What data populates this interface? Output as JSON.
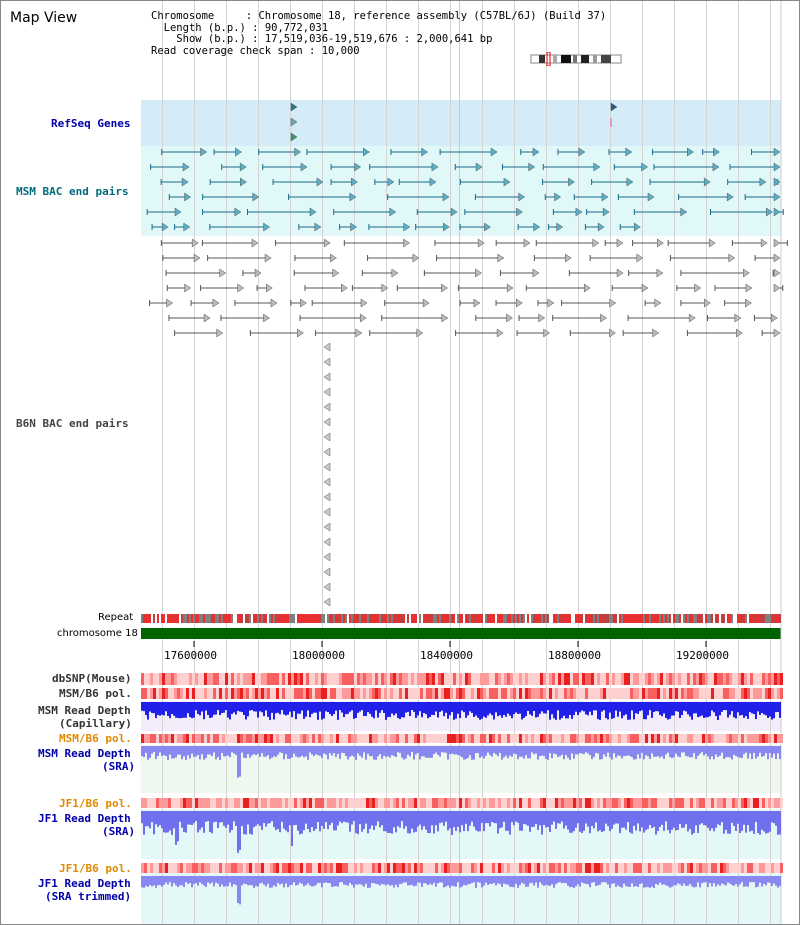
{
  "app_title": "Map View",
  "info": {
    "chromosome_key": "Chromosome",
    "chromosome_val": "Chromosome 18, reference assembly (C57BL/6J) (Build 37)",
    "length_key": "Length (b.p.)",
    "length_val": "90,772,031",
    "show_key": "Show (b.p.)",
    "show_val": "17,519,036-19,519,676 : 2,000,641 bp",
    "coverage_key": "Read coverage check span",
    "coverage_val": "10,000"
  },
  "tracks": {
    "refseq": "RefSeq Genes",
    "msm_bac": "MSM BAC end pairs",
    "b6n_bac": "B6N BAC end pairs",
    "repeat": "Repeat",
    "chromosome": "chromosome 18",
    "dbsnp": "dbSNP(Mouse)",
    "msm_b6_pol_1": "MSM/B6 pol.",
    "msm_depth_cap_1": "MSM Read Depth",
    "msm_depth_cap_2": "(Capillary)",
    "msm_b6_pol_2": "MSM/B6 pol.",
    "msm_depth_sra_1": "MSM Read Depth",
    "msm_depth_sra_2": "(SRA)",
    "jf1_b6_pol_1": "JF1/B6 pol.",
    "jf1_depth_sra_1": "JF1 Read Depth",
    "jf1_depth_sra_2": "(SRA)",
    "jf1_b6_pol_2": "JF1/B6 pol.",
    "jf1_depth_trim_1": "JF1 Read Depth",
    "jf1_depth_trim_2": "(SRA trimmed)"
  },
  "axis": {
    "ticks": [
      "17600000",
      "18000000",
      "18400000",
      "18800000",
      "19200000"
    ]
  },
  "colors": {
    "label_blue": "#0000aa",
    "label_teal": "#006a7a",
    "label_orange": "#e08a00",
    "label_gray": "#333333",
    "chromosome_bar": "#006400",
    "refseq_bg": "#d4ecf8",
    "msm_bac_bg": "#e0f8f8",
    "depth_blue": "#3333dd"
  }
}
